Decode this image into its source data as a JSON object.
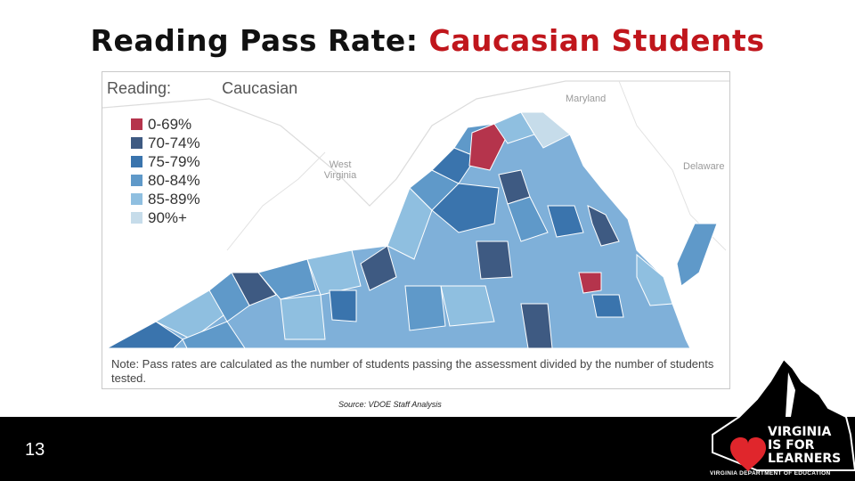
{
  "slide": {
    "title_main": "Reading Pass Rate: ",
    "title_accent": "Caucasian Students",
    "page_number": "13",
    "source": "Source: VDOE Staff Analysis"
  },
  "map": {
    "header_label": "Reading:",
    "header_value": "Caucasian",
    "neighbor_labels": {
      "maryland": "Maryland",
      "west_virginia": "West Virginia",
      "delaware": "Delaware"
    },
    "legend": [
      {
        "label": "0-69%",
        "color": "#b5344c"
      },
      {
        "label": "70-74%",
        "color": "#3e5a82"
      },
      {
        "label": "75-79%",
        "color": "#3a74ad"
      },
      {
        "label": "80-84%",
        "color": "#5f99c9"
      },
      {
        "label": "85-89%",
        "color": "#8fbfe0"
      },
      {
        "label": "90%+",
        "color": "#c6dcea"
      }
    ],
    "note": "Note: Pass rates are calculated as the number of students passing the assessment divided by the number of students tested."
  },
  "logo": {
    "line1": "VIRGINIA",
    "line2": "IS FOR",
    "line3": "LEARNERS",
    "subline": "VIRGINIA DEPARTMENT OF EDUCATION"
  }
}
